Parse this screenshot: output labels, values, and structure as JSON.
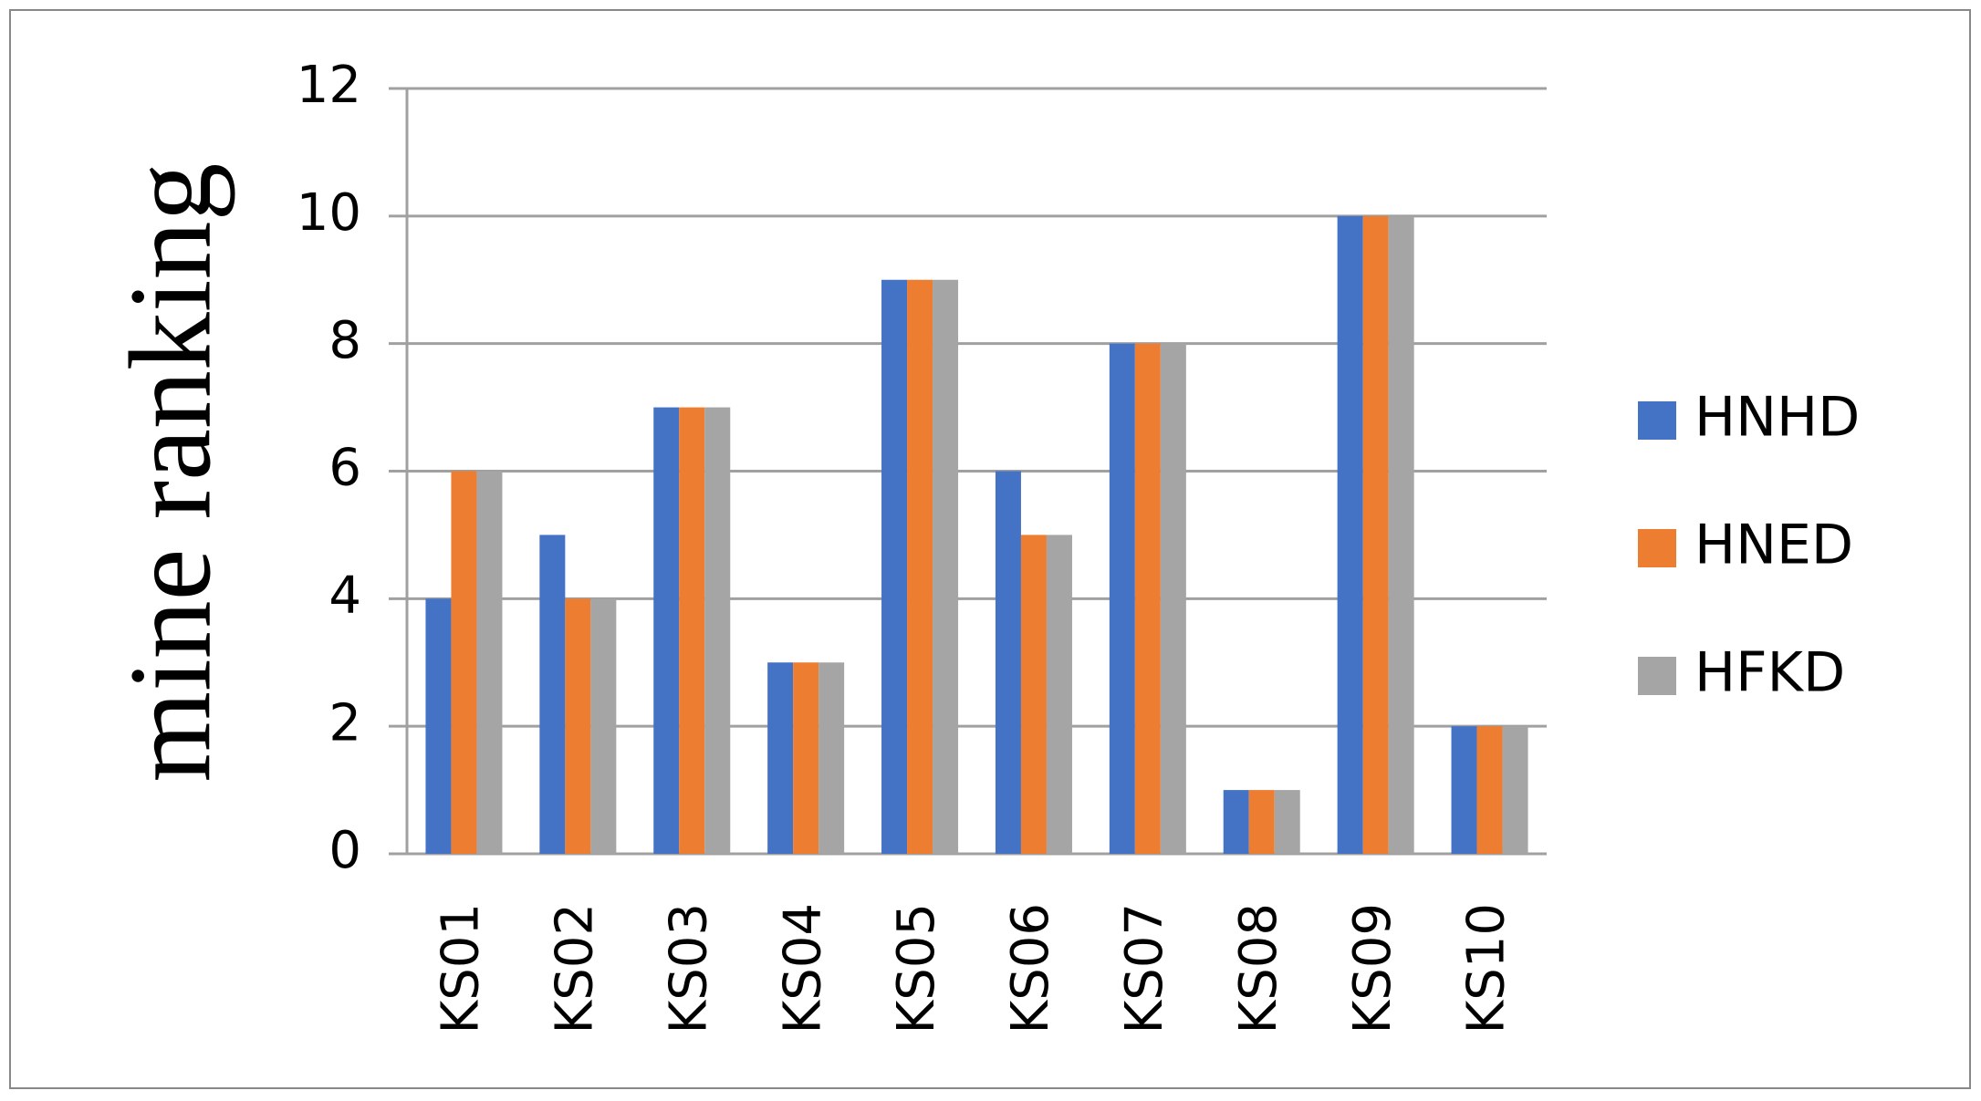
{
  "chart_data": {
    "type": "bar",
    "y_label": "mine ranking",
    "categories": [
      "KS01",
      "KS02",
      "KS03",
      "KS04",
      "KS05",
      "KS06",
      "KS07",
      "KS08",
      "KS09",
      "KS10"
    ],
    "series": [
      {
        "name": "HNHD",
        "color": "#4472c4",
        "values": [
          4,
          5,
          7,
          3,
          9,
          6,
          8,
          1,
          10,
          2
        ]
      },
      {
        "name": "HNED",
        "color": "#ed7d31",
        "values": [
          6,
          4,
          7,
          3,
          9,
          5,
          8,
          1,
          10,
          2
        ]
      },
      {
        "name": "HFKD",
        "color": "#a5a5a5",
        "values": [
          6,
          4,
          7,
          3,
          9,
          5,
          8,
          1,
          10,
          2
        ]
      }
    ],
    "ylim": [
      0,
      12
    ],
    "yticks": [
      0,
      2,
      4,
      6,
      8,
      10,
      12
    ],
    "grid": true,
    "legend": "right"
  }
}
